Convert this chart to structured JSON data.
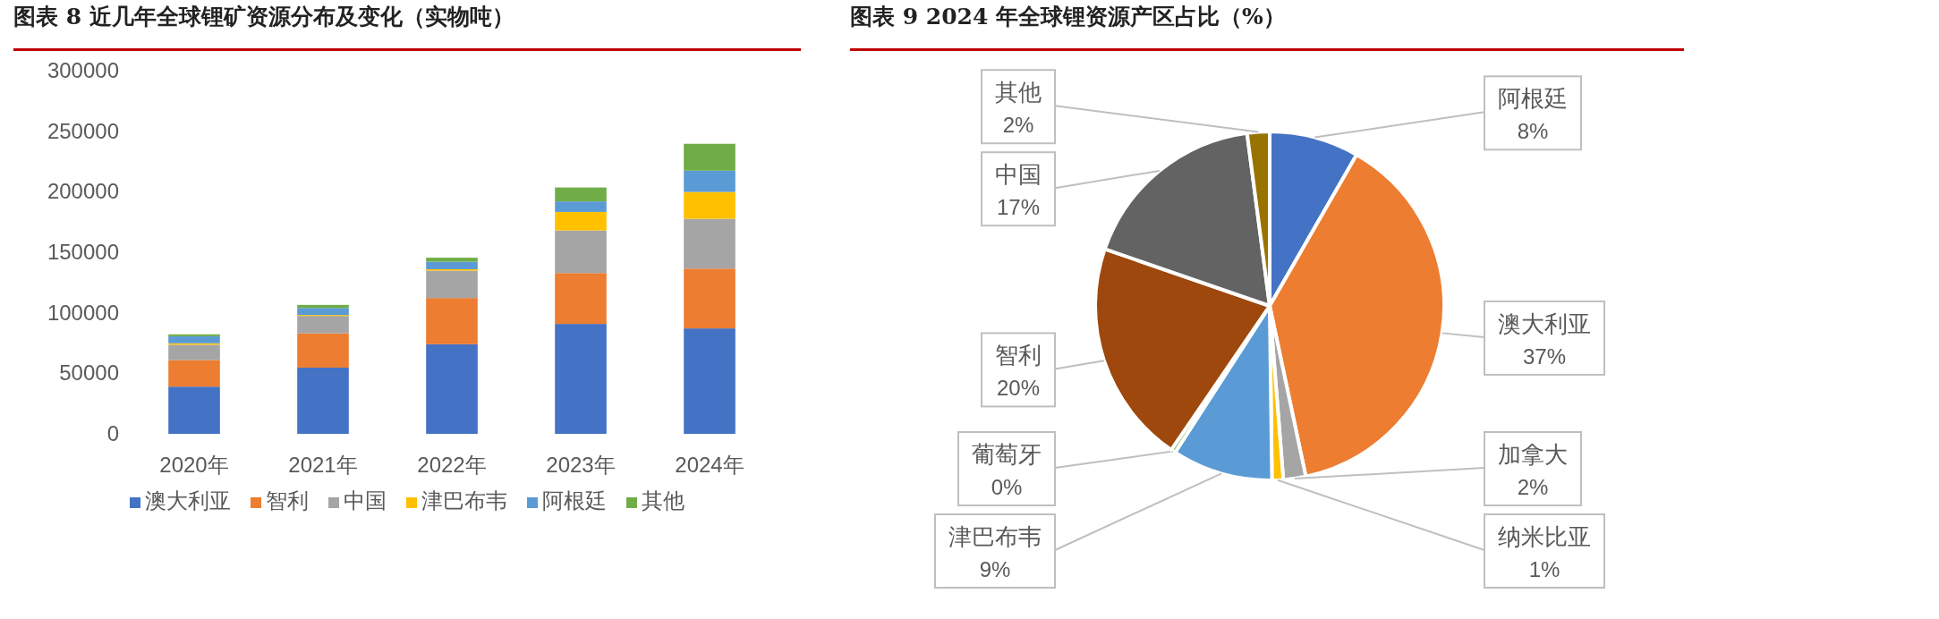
{
  "chart_data": [
    {
      "type": "bar",
      "title": "图表 8 近几年全球锂矿资源分布及变化（实物吨）",
      "stacked": true,
      "legend": "bottom",
      "grid": false,
      "categories": [
        "2020年",
        "2021年",
        "2022年",
        "2023年",
        "2024年"
      ],
      "ylim": [
        0,
        300000
      ],
      "yticks": [
        0,
        50000,
        100000,
        150000,
        200000,
        250000,
        300000
      ],
      "series": [
        {
          "name": "澳大利亚",
          "color": "#4472c4",
          "values": [
            39000,
            54700,
            74000,
            90800,
            87100
          ]
        },
        {
          "name": "智利",
          "color": "#ed7d31",
          "values": [
            22000,
            28300,
            38200,
            42000,
            49400
          ]
        },
        {
          "name": "中国",
          "color": "#a5a5a5",
          "values": [
            12600,
            14400,
            22600,
            35200,
            41100
          ]
        },
        {
          "name": "津巴布韦",
          "color": "#ffc000",
          "values": [
            1200,
            800,
            1200,
            15300,
            22200
          ]
        },
        {
          "name": "阿根廷",
          "color": "#5b9bd5",
          "values": [
            5800,
            5800,
            6200,
            8700,
            17600
          ]
        },
        {
          "name": "其他",
          "color": "#70ad47",
          "values": [
            1600,
            2500,
            3300,
            11500,
            22200
          ]
        }
      ]
    },
    {
      "type": "pie",
      "title": "图表 9 2024 年全球锂资源产区占比（%）",
      "data_labels": true,
      "categories": [
        "阿根廷",
        "澳大利亚",
        "加拿大",
        "纳米比亚",
        "津巴布韦",
        "葡萄牙",
        "智利",
        "中国",
        "其他"
      ],
      "values": [
        8,
        37,
        2,
        1,
        9,
        0.4,
        20,
        17,
        2
      ],
      "value_labels": [
        "8%",
        "37%",
        "2%",
        "1%",
        "9%",
        "0%",
        "20%",
        "17%",
        "2%"
      ],
      "colors": [
        "#4472c4",
        "#ed7d31",
        "#a5a5a5",
        "#ffc000",
        "#5b9bd5",
        "#70ad47",
        "#9e480e",
        "#636363",
        "#997300"
      ]
    }
  ]
}
